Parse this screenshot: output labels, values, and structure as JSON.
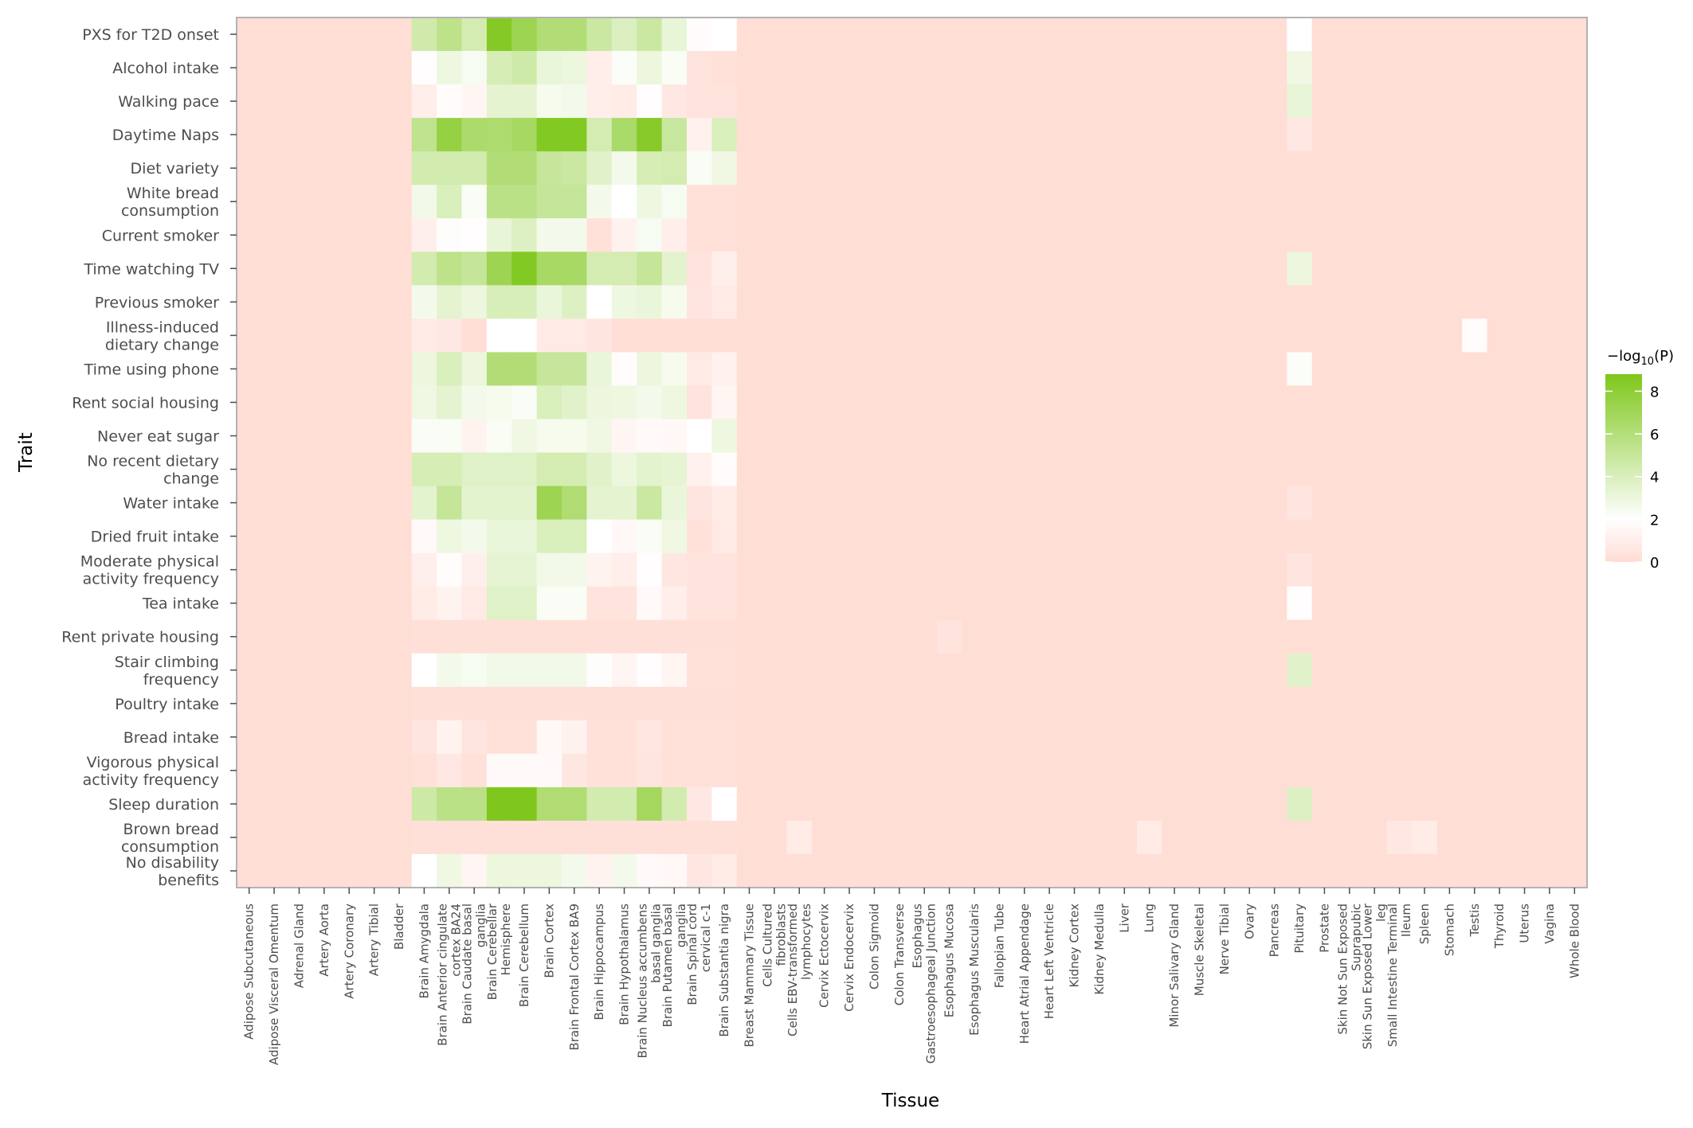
{
  "chart_data": {
    "type": "heatmap",
    "xlabel": "Tissue",
    "ylabel": "Trait",
    "legend": {
      "title_prefix": "−log",
      "title_sub": "10",
      "title_suffix": "(P)",
      "ticks": [
        0,
        2,
        4,
        6,
        8
      ],
      "range": [
        0,
        8.8
      ],
      "position": "right"
    },
    "colors": {
      "low": "#ffdcd4",
      "mid": "#ffffff",
      "high": "#7fc71c",
      "panel_border": "#b3b3b3",
      "tick": "#4d4d4d"
    },
    "traits": [
      [
        "PXS for T2D onset"
      ],
      [
        "Alcohol intake"
      ],
      [
        "Walking pace"
      ],
      [
        "Daytime Naps"
      ],
      [
        "Diet variety"
      ],
      [
        "White bread",
        "consumption"
      ],
      [
        "Current smoker"
      ],
      [
        "Time watching TV"
      ],
      [
        "Previous smoker"
      ],
      [
        "Illness-induced",
        "dietary change"
      ],
      [
        "Time using phone"
      ],
      [
        "Rent social housing"
      ],
      [
        "Never eat sugar"
      ],
      [
        "No recent dietary",
        "change"
      ],
      [
        "Water intake"
      ],
      [
        "Dried fruit intake"
      ],
      [
        "Moderate physical",
        "activity frequency"
      ],
      [
        "Tea intake"
      ],
      [
        "Rent private housing"
      ],
      [
        "Stair climbing",
        "frequency"
      ],
      [
        "Poultry intake"
      ],
      [
        "Bread intake"
      ],
      [
        "Vigorous physical",
        "activity frequency"
      ],
      [
        "Sleep duration"
      ],
      [
        "Brown bread",
        "consumption"
      ],
      [
        "No disability",
        "benefits"
      ]
    ],
    "tissues": [
      [
        "Adipose Subcutaneous"
      ],
      [
        "Adipose Visceral Omentum"
      ],
      [
        "Adrenal Gland"
      ],
      [
        "Artery Aorta"
      ],
      [
        "Artery Coronary"
      ],
      [
        "Artery Tibial"
      ],
      [
        "Bladder"
      ],
      [
        "Brain Amygdala"
      ],
      [
        "Brain Anterior cingulate",
        "cortex BA24"
      ],
      [
        "Brain Caudate basal",
        "ganglia"
      ],
      [
        "Brain Cerebellar",
        "Hemisphere"
      ],
      [
        "Brain Cerebellum"
      ],
      [
        "Brain Cortex"
      ],
      [
        "Brain Frontal Cortex BA9"
      ],
      [
        "Brain Hippocampus"
      ],
      [
        "Brain Hypothalamus"
      ],
      [
        "Brain Nucleus accumbens",
        "basal ganglia"
      ],
      [
        "Brain Putamen basal",
        "ganglia"
      ],
      [
        "Brain Spinal cord",
        "cervical c-1"
      ],
      [
        "Brain Substantia nigra"
      ],
      [
        "Breast Mammary Tissue"
      ],
      [
        "Cells Cultured",
        "fibroblasts"
      ],
      [
        "Cells EBV-transformed",
        "lymphocytes"
      ],
      [
        "Cervix Ectocervix"
      ],
      [
        "Cervix Endocervix"
      ],
      [
        "Colon Sigmoid"
      ],
      [
        "Colon Transverse"
      ],
      [
        "Esophagus",
        "Gastroesophageal Junction"
      ],
      [
        "Esophagus Mucosa"
      ],
      [
        "Esophagus Muscularis"
      ],
      [
        "Fallopian Tube"
      ],
      [
        "Heart Atrial Appendage"
      ],
      [
        "Heart Left Ventricle"
      ],
      [
        "Kidney Cortex"
      ],
      [
        "Kidney Medulla"
      ],
      [
        "Liver"
      ],
      [
        "Lung"
      ],
      [
        "Minor Salivary Gland"
      ],
      [
        "Muscle Skeletal"
      ],
      [
        "Nerve Tibial"
      ],
      [
        "Ovary"
      ],
      [
        "Pancreas"
      ],
      [
        "Pituitary"
      ],
      [
        "Prostate"
      ],
      [
        "Skin Not Sun Exposed",
        "Suprapubic"
      ],
      [
        "Skin Sun Exposed Lower",
        "leg"
      ],
      [
        "Small Intestine Terminal",
        "Ileum"
      ],
      [
        "Spleen"
      ],
      [
        "Stomach"
      ],
      [
        "Testis"
      ],
      [
        "Thyroid"
      ],
      [
        "Uterus"
      ],
      [
        "Vagina"
      ],
      [
        "Whole Blood"
      ]
    ],
    "brain_block_start_col": 7,
    "brain_block_values": [
      [
        4.5,
        5.5,
        4.3,
        8.5,
        7.2,
        6.1,
        6.1,
        4.8,
        3.9,
        4.8,
        3.2,
        1.8,
        2.0
      ],
      [
        1.9,
        2.9,
        2.4,
        4.2,
        4.6,
        3.1,
        3.0,
        1.0,
        2.2,
        3.0,
        2.3,
        0.4,
        0.3
      ],
      [
        1.0,
        1.8,
        1.5,
        3.4,
        3.4,
        2.5,
        2.6,
        1.0,
        0.9,
        1.9,
        0.7,
        0.4,
        0.4
      ],
      [
        5.4,
        7.6,
        6.4,
        6.3,
        6.7,
        8.6,
        8.6,
        4.3,
        6.5,
        8.4,
        4.9,
        1.2,
        4.0
      ],
      [
        4.4,
        4.4,
        4.4,
        6.1,
        6.1,
        5.0,
        4.8,
        3.6,
        2.6,
        4.2,
        4.3,
        2.3,
        2.8
      ],
      [
        2.7,
        4.0,
        2.3,
        5.6,
        5.6,
        5.1,
        5.1,
        2.6,
        2.0,
        2.9,
        2.4,
        0.3,
        0.3
      ],
      [
        1.1,
        2.1,
        1.9,
        3.2,
        3.8,
        2.6,
        2.6,
        0.3,
        1.2,
        2.4,
        1.0,
        0.3,
        0.3
      ],
      [
        4.4,
        5.5,
        5.1,
        7.2,
        8.6,
        6.6,
        6.6,
        4.3,
        4.3,
        5.1,
        3.5,
        0.4,
        1.1
      ],
      [
        2.6,
        3.4,
        3.0,
        4.1,
        4.1,
        3.1,
        3.8,
        2.0,
        2.9,
        3.1,
        2.5,
        0.5,
        0.8
      ],
      [
        0.8,
        0.7,
        0.1,
        2.0,
        2.0,
        0.8,
        0.8,
        0.5,
        0.1,
        0.1,
        0.1,
        0.1,
        0.1
      ],
      [
        3.0,
        4.0,
        3.0,
        6.1,
        6.1,
        5.0,
        5.0,
        3.1,
        1.8,
        3.0,
        2.5,
        0.8,
        1.2
      ],
      [
        2.8,
        3.4,
        2.6,
        2.5,
        2.3,
        4.0,
        3.6,
        3.0,
        2.9,
        2.6,
        2.9,
        0.4,
        1.4
      ],
      [
        2.3,
        2.3,
        1.3,
        2.3,
        2.8,
        2.5,
        2.5,
        2.8,
        1.5,
        1.7,
        1.6,
        2.0,
        2.9
      ],
      [
        4.2,
        4.2,
        3.7,
        3.7,
        3.7,
        4.3,
        4.3,
        3.6,
        3.0,
        3.5,
        3.3,
        1.2,
        1.8
      ],
      [
        3.5,
        5.1,
        3.5,
        3.5,
        3.5,
        7.2,
        6.2,
        3.4,
        3.4,
        4.8,
        3.1,
        0.5,
        0.9
      ],
      [
        1.7,
        2.9,
        2.6,
        3.1,
        3.1,
        4.0,
        4.0,
        2.0,
        1.6,
        2.3,
        2.8,
        0.3,
        0.8
      ],
      [
        1.1,
        1.8,
        1.1,
        3.3,
        3.3,
        2.7,
        2.7,
        1.3,
        1.0,
        1.9,
        0.6,
        0.4,
        0.4
      ],
      [
        0.9,
        1.3,
        0.8,
        3.7,
        3.7,
        2.3,
        2.3,
        0.4,
        0.4,
        1.7,
        1.0,
        0.4,
        0.4
      ],
      [
        0.2,
        0.2,
        0.2,
        0.2,
        0.2,
        0.2,
        0.2,
        0.2,
        0.2,
        0.2,
        0.2,
        0.2,
        0.2
      ],
      [
        2.0,
        2.6,
        2.4,
        2.7,
        2.7,
        2.7,
        2.7,
        2.1,
        1.4,
        1.9,
        1.5,
        0.3,
        0.3
      ],
      [
        0.2,
        0.2,
        0.2,
        0.2,
        0.2,
        0.2,
        0.2,
        0.2,
        0.2,
        0.2,
        0.2,
        0.2,
        0.2
      ],
      [
        0.5,
        1.3,
        0.5,
        0.3,
        0.3,
        1.6,
        1.2,
        0.3,
        0.3,
        0.6,
        0.3,
        0.3,
        0.3
      ],
      [
        0.3,
        0.7,
        0.3,
        1.7,
        1.7,
        1.7,
        0.6,
        0.3,
        0.3,
        0.5,
        0.3,
        0.3,
        0.3
      ],
      [
        4.7,
        5.6,
        5.6,
        8.9,
        8.9,
        6.2,
        6.2,
        4.4,
        4.4,
        6.8,
        4.4,
        0.7,
        2.0
      ],
      [
        0.2,
        0.2,
        0.2,
        0.2,
        0.2,
        0.2,
        0.2,
        0.2,
        0.2,
        0.2,
        0.2,
        0.2,
        0.2
      ],
      [
        2.0,
        2.8,
        1.4,
        3.0,
        3.0,
        3.0,
        2.6,
        1.3,
        2.6,
        1.7,
        1.6,
        0.6,
        0.9
      ]
    ],
    "other_nonzero_cells": [
      {
        "trait": 0,
        "col": 42,
        "value": 2.0
      },
      {
        "trait": 1,
        "col": 42,
        "value": 2.8
      },
      {
        "trait": 2,
        "col": 42,
        "value": 3.2
      },
      {
        "trait": 3,
        "col": 42,
        "value": 0.7
      },
      {
        "trait": 7,
        "col": 42,
        "value": 3.0
      },
      {
        "trait": 10,
        "col": 42,
        "value": 2.2
      },
      {
        "trait": 14,
        "col": 42,
        "value": 0.5
      },
      {
        "trait": 16,
        "col": 42,
        "value": 0.5
      },
      {
        "trait": 17,
        "col": 42,
        "value": 1.9
      },
      {
        "trait": 19,
        "col": 42,
        "value": 3.6
      },
      {
        "trait": 23,
        "col": 42,
        "value": 3.8
      },
      {
        "trait": 9,
        "col": 49,
        "value": 1.8
      },
      {
        "trait": 24,
        "col": 22,
        "value": 0.9
      },
      {
        "trait": 24,
        "col": 36,
        "value": 0.8
      },
      {
        "trait": 24,
        "col": 46,
        "value": 0.7
      },
      {
        "trait": 24,
        "col": 47,
        "value": 0.9
      },
      {
        "trait": 18,
        "col": 28,
        "value": 0.4
      }
    ],
    "background_value": 0.1
  }
}
